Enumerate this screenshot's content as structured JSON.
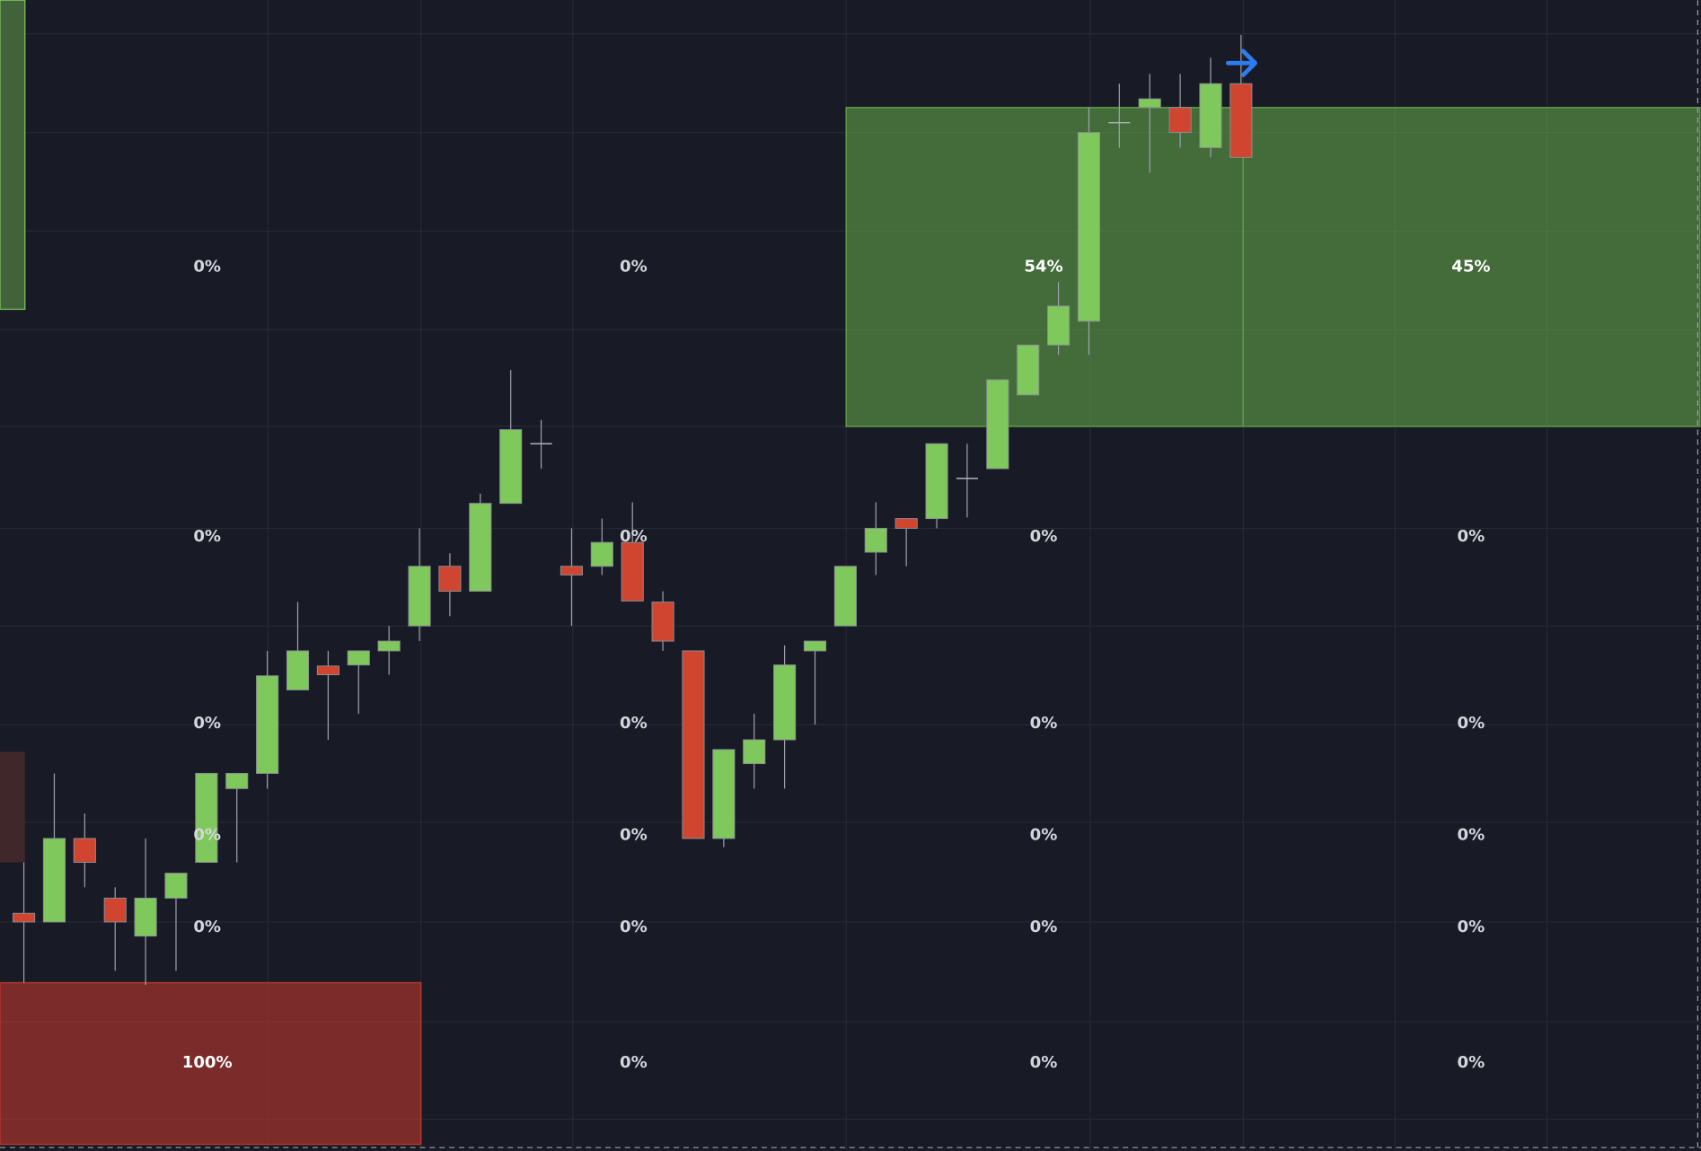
{
  "chart_data": {
    "type": "candlestick",
    "categories": [
      null,
      null,
      null,
      null,
      null,
      null,
      null,
      null,
      null,
      null,
      null,
      null,
      null,
      null,
      null,
      null,
      null,
      null,
      null,
      null,
      null,
      null,
      null,
      null,
      null,
      null,
      null,
      null,
      null,
      null,
      null,
      null,
      null,
      null,
      null,
      null,
      null,
      null,
      null,
      null,
      null
    ],
    "open": [
      219,
      211,
      288,
      233,
      198,
      233,
      266,
      334,
      348,
      425,
      447,
      448,
      461,
      484,
      539,
      516,
      597,
      652,
      539,
      539,
      561,
      506,
      461,
      288,
      357,
      379,
      461,
      484,
      552,
      583,
      583,
      620,
      629,
      697,
      743,
      765,
      948,
      962,
      962,
      925,
      984
    ],
    "high": [
      266,
      348,
      311,
      243,
      288,
      256,
      348,
      348,
      461,
      506,
      461,
      461,
      484,
      574,
      551,
      606,
      720,
      674,
      574,
      583,
      598,
      516,
      461,
      370,
      403,
      466,
      470,
      539,
      598,
      583,
      652,
      652,
      711,
      743,
      801,
      962,
      984,
      993,
      993,
      1008,
      1029
    ],
    "low": [
      155,
      211,
      243,
      166,
      153,
      166,
      266,
      266,
      334,
      425,
      379,
      403,
      439,
      470,
      493,
      516,
      597,
      629,
      484,
      531,
      507,
      461,
      288,
      280,
      334,
      334,
      393,
      484,
      531,
      539,
      574,
      584,
      629,
      697,
      734,
      734,
      925,
      902,
      925,
      916,
      916
    ],
    "close": [
      211,
      288,
      266,
      211,
      233,
      256,
      348,
      348,
      438,
      461,
      439,
      461,
      470,
      539,
      516,
      597,
      665,
      652,
      531,
      561,
      507,
      470,
      288,
      370,
      379,
      448,
      470,
      539,
      574,
      574,
      652,
      620,
      711,
      743,
      779,
      939,
      948,
      970,
      939,
      984,
      916
    ],
    "up_color": "#7ec85c",
    "down_color": "#d0452f",
    "doji_color": "#b0b3bb",
    "ylim": [
      0,
      1061
    ],
    "zones": {
      "values": [
        [
          0,
          0,
          54,
          45
        ],
        [
          0,
          0,
          0,
          0
        ],
        [
          0,
          0,
          0,
          0
        ],
        [
          0,
          0,
          0,
          0
        ],
        [
          0,
          0,
          0,
          0
        ],
        [
          100,
          0,
          0,
          0
        ]
      ],
      "value_labels": [
        [
          "0%",
          "0%",
          "54%",
          "45%"
        ],
        [
          "0%",
          "0%",
          "0%",
          "0%"
        ],
        [
          "0%",
          "0%",
          "0%",
          "0%"
        ],
        [
          "0%",
          "0%",
          "0%",
          "0%"
        ],
        [
          "0%",
          "0%",
          "0%",
          "0%"
        ],
        [
          "100%",
          "0%",
          "0%",
          "0%"
        ]
      ],
      "row_colors": [
        "#5f9e47",
        null,
        null,
        null,
        null,
        "#b8362c"
      ]
    }
  }
}
